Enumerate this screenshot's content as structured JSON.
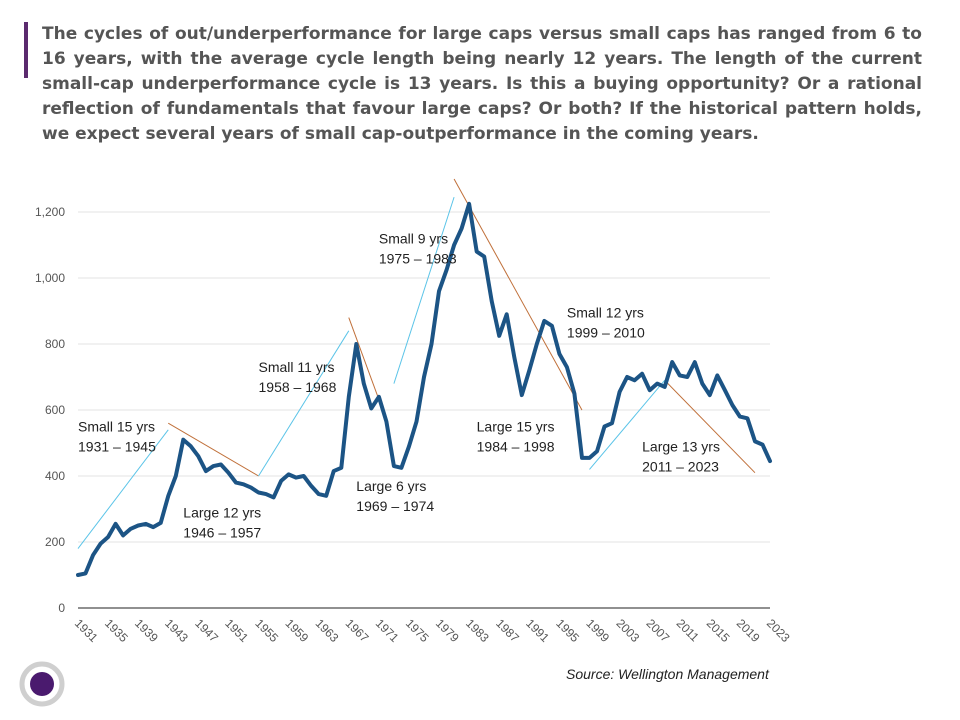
{
  "headline": "The cycles of out/underperformance for large caps versus small caps has ranged from 6 to 16 years, with the average cycle length being nearly 12 years. The length of the current small-cap underperformance cycle is 13 years. Is this a buying opportunity? Or a rational reflection of fundamentals that favour large caps? Or both? If the historical pattern holds, we expect several years of small cap-outperformance in the coming years.",
  "source": "Source: Wellington Management",
  "colors": {
    "accent": "#5b2a6e",
    "series": "#1c5485",
    "small_trend": "#5bc4e8",
    "large_trend": "#c0703a",
    "logo_ring": "#cfcfcf",
    "logo_dot": "#4a1a6e"
  },
  "logo": {
    "icon": "purple-circle-logo"
  },
  "chart_data": {
    "type": "line",
    "title": "",
    "xlabel": "",
    "ylabel": "",
    "xlim": [
      1931,
      2023
    ],
    "ylim": [
      0,
      1250
    ],
    "y_ticks": [
      0,
      200,
      400,
      600,
      800,
      1000,
      1200
    ],
    "y_tick_labels": [
      "0",
      "200",
      "400",
      "600",
      "800",
      "1,000",
      "1,200"
    ],
    "x_tick_labels": [
      "1931",
      "1935",
      "1939",
      "1943",
      "1947",
      "1951",
      "1955",
      "1959",
      "1963",
      "1967",
      "1971",
      "1975",
      "1979",
      "1983",
      "1987",
      "1991",
      "1995",
      "1999",
      "2003",
      "2007",
      "2011",
      "2015",
      "2019",
      "2023"
    ],
    "grid": "horizontal",
    "legend": "none",
    "series": [
      {
        "x": [
          1931,
          1932,
          1933,
          1934,
          1935,
          1936,
          1937,
          1938,
          1939,
          1940,
          1941,
          1942,
          1943,
          1944,
          1945,
          1946,
          1947,
          1948,
          1949,
          1950,
          1951,
          1952,
          1953,
          1954,
          1955,
          1956,
          1957,
          1958,
          1959,
          1960,
          1961,
          1962,
          1963,
          1964,
          1965,
          1966,
          1967,
          1968,
          1969,
          1970,
          1971,
          1972,
          1973,
          1974,
          1975,
          1976,
          1977,
          1978,
          1979,
          1980,
          1981,
          1982,
          1983,
          1984,
          1985,
          1986,
          1987,
          1988,
          1989,
          1990,
          1991,
          1992,
          1993,
          1994,
          1995,
          1996,
          1997,
          1998,
          1999,
          2000,
          2001,
          2002,
          2003,
          2004,
          2005,
          2006,
          2007,
          2008,
          2009,
          2010,
          2011,
          2012,
          2013,
          2014,
          2015,
          2016,
          2017,
          2018,
          2019,
          2020,
          2021,
          2022,
          2023
        ],
        "y": [
          100,
          105,
          160,
          195,
          215,
          255,
          220,
          240,
          250,
          255,
          245,
          258,
          340,
          400,
          510,
          490,
          460,
          415,
          430,
          435,
          410,
          380,
          375,
          365,
          350,
          345,
          335,
          385,
          405,
          395,
          400,
          370,
          345,
          340,
          415,
          425,
          640,
          800,
          680,
          605,
          640,
          565,
          430,
          425,
          490,
          565,
          700,
          800,
          960,
          1025,
          1100,
          1150,
          1225,
          1080,
          1065,
          930,
          825,
          890,
          760,
          645,
          720,
          800,
          870,
          855,
          770,
          730,
          650,
          455,
          455,
          475,
          550,
          560,
          655,
          700,
          690,
          710,
          660,
          680,
          670,
          745,
          705,
          700,
          745,
          680,
          645,
          705,
          660,
          615,
          580,
          575,
          505,
          495,
          445
        ]
      }
    ],
    "trendlines": [
      {
        "kind": "small",
        "x": [
          1931,
          1943
        ],
        "y": [
          180,
          540
        ]
      },
      {
        "kind": "large",
        "x": [
          1943,
          1955
        ],
        "y": [
          560,
          400
        ]
      },
      {
        "kind": "small",
        "x": [
          1955,
          1967
        ],
        "y": [
          400,
          840
        ]
      },
      {
        "kind": "large",
        "x": [
          1967,
          1972
        ],
        "y": [
          880,
          570
        ]
      },
      {
        "kind": "small",
        "x": [
          1973,
          1981
        ],
        "y": [
          680,
          1245
        ]
      },
      {
        "kind": "large",
        "x": [
          1981,
          1998
        ],
        "y": [
          1300,
          600
        ]
      },
      {
        "kind": "small",
        "x": [
          1999,
          2009
        ],
        "y": [
          420,
          690
        ]
      },
      {
        "kind": "large",
        "x": [
          2009,
          2021
        ],
        "y": [
          690,
          410
        ]
      }
    ],
    "annotations": [
      {
        "line1": "Small 15 yrs",
        "line2": "1931 – 1945",
        "x": 1931,
        "y": 535
      },
      {
        "line1": "Large 12 yrs",
        "line2": "1946 – 1957",
        "x": 1945,
        "y": 275
      },
      {
        "line1": "Small 11 yrs",
        "line2": "1958 – 1968",
        "x": 1955,
        "y": 715
      },
      {
        "line1": "Large 6 yrs",
        "line2": "1969 – 1974",
        "x": 1968,
        "y": 355
      },
      {
        "line1": "Small 9 yrs",
        "line2": "1975 – 1983",
        "x": 1971,
        "y": 1105
      },
      {
        "line1": "Small 12 yrs",
        "line2": "1999 – 2010",
        "x": 1996,
        "y": 880
      },
      {
        "line1": "Large 15 yrs",
        "line2": "1984 – 1998",
        "x": 1984,
        "y": 535
      },
      {
        "line1": "Large 13 yrs",
        "line2": "2011 – 2023",
        "x": 2006,
        "y": 475
      }
    ]
  }
}
